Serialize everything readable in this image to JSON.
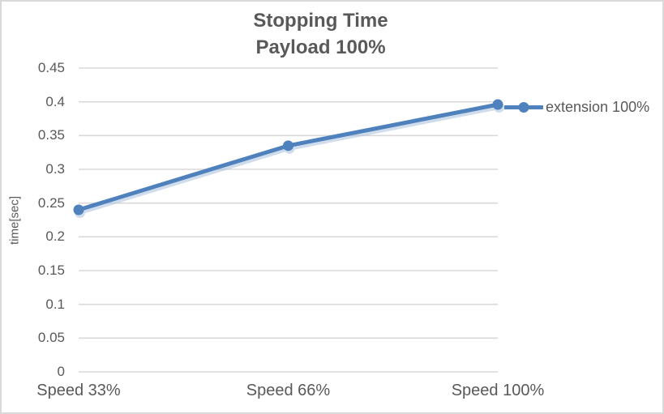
{
  "window": {
    "background": "#ffffff",
    "border_color": "#d9d9d9"
  },
  "chart_data": {
    "type": "line",
    "title": "Stopping Time",
    "subtitle": "Payload 100%",
    "categories": [
      "Speed 33%",
      "Speed 66%",
      "Speed 100%"
    ],
    "series": [
      {
        "name": "extension 100%",
        "values": [
          0.24,
          0.335,
          0.396
        ],
        "color": "#4f81bd",
        "shadow_color": "#a9c1de",
        "marker": "circle"
      }
    ],
    "xlabel": "",
    "ylabel": "time[sec]",
    "ylim": [
      0,
      0.45
    ],
    "ytick_step": 0.05,
    "grid": true,
    "grid_color": "#d9d9d9",
    "text_color": "#595959",
    "legend_position": "right"
  }
}
